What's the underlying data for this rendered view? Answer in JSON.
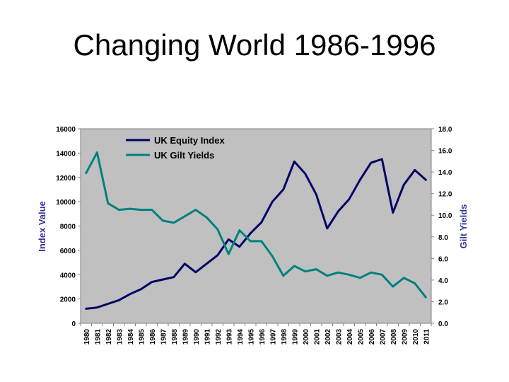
{
  "slide": {
    "title": "Changing World 1986-1996"
  },
  "chart_data": {
    "type": "line",
    "title": "",
    "x": [
      "1980",
      "1981",
      "1982",
      "1983",
      "1984",
      "1985",
      "1986",
      "1987",
      "1988",
      "1989",
      "1990",
      "1991",
      "1992",
      "1993",
      "1994",
      "1995",
      "1996",
      "1997",
      "1998",
      "1999",
      "2000",
      "2001",
      "2002",
      "2003",
      "2004",
      "2005",
      "2006",
      "2007",
      "2008",
      "2009",
      "2010",
      "2011"
    ],
    "ylabel": "Index Value",
    "ylim": [
      0,
      16000
    ],
    "y_ticks": [
      "0",
      "2000",
      "4000",
      "6000",
      "8000",
      "10000",
      "12000",
      "14000",
      "16000"
    ],
    "y2label": "Gilt Yields",
    "y2lim": [
      0,
      18
    ],
    "y2_ticks": [
      "0.0",
      "2.0",
      "4.0",
      "6.0",
      "8.0",
      "10.0",
      "12.0",
      "14.0",
      "16.0",
      "18.0"
    ],
    "legend_position": "top-left",
    "grid": false,
    "plot_background": "#c0c0c0",
    "series": [
      {
        "name": "UK Equity Index",
        "axis": "left",
        "color": "#000066",
        "values": [
          1200,
          1300,
          1600,
          1900,
          2400,
          2800,
          3400,
          3600,
          3800,
          4900,
          4200,
          4900,
          5600,
          6900,
          6300,
          7400,
          8300,
          10000,
          11000,
          13300,
          12300,
          10600,
          7800,
          9200,
          10200,
          11800,
          13200,
          13500,
          9100,
          11400,
          12600,
          11800
        ]
      },
      {
        "name": "UK Gilt Yields",
        "axis": "right",
        "color": "#008080",
        "values": [
          13.9,
          15.8,
          11.1,
          10.5,
          10.6,
          10.5,
          10.5,
          9.5,
          9.3,
          9.9,
          10.5,
          9.8,
          8.7,
          6.4,
          8.6,
          7.6,
          7.6,
          6.2,
          4.4,
          5.3,
          4.8,
          5.0,
          4.4,
          4.7,
          4.5,
          4.2,
          4.7,
          4.5,
          3.4,
          4.2,
          3.7,
          2.4
        ]
      }
    ]
  }
}
